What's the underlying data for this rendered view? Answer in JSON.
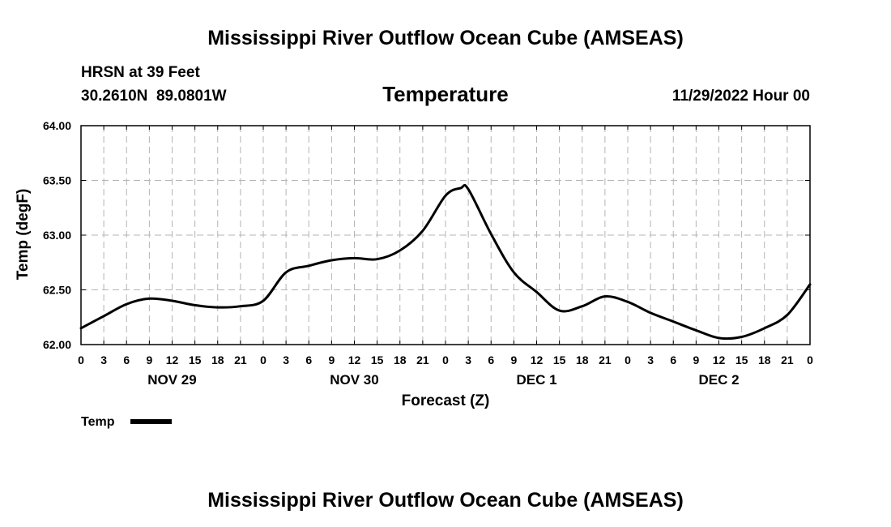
{
  "header": {
    "title": "Mississippi River Outflow Ocean Cube (AMSEAS)",
    "station": "HRSN at 39 Feet",
    "coords": "30.2610N  89.0801W",
    "chart_title": "Temperature",
    "datetime": "11/29/2022 Hour 00"
  },
  "footer": {
    "title": "Mississippi River Outflow Ocean Cube (AMSEAS)"
  },
  "chart_data": {
    "type": "line",
    "title": "Temperature",
    "xlabel": "Forecast (Z)",
    "ylabel": "Temp (degF)",
    "xlim": [
      0,
      96
    ],
    "ylim": [
      62.0,
      64.0
    ],
    "y_ticks": [
      "62.00",
      "62.50",
      "63.00",
      "63.50",
      "64.00"
    ],
    "y_tick_values": [
      62.0,
      62.5,
      63.0,
      63.5,
      64.0
    ],
    "x_tick_values": [
      0,
      3,
      6,
      9,
      12,
      15,
      18,
      21,
      24,
      27,
      30,
      33,
      36,
      39,
      42,
      45,
      48,
      51,
      54,
      57,
      60,
      63,
      66,
      69,
      72,
      75,
      78,
      81,
      84,
      87,
      90,
      93,
      96
    ],
    "x_tick_labels": [
      "0",
      "3",
      "6",
      "9",
      "12",
      "15",
      "18",
      "21",
      "0",
      "3",
      "6",
      "9",
      "12",
      "15",
      "18",
      "21",
      "0",
      "3",
      "6",
      "9",
      "12",
      "15",
      "18",
      "21",
      "0",
      "3",
      "6",
      "9",
      "12",
      "15",
      "18",
      "21",
      "0"
    ],
    "day_labels": [
      {
        "label": "NOV 29",
        "x": 12
      },
      {
        "label": "NOV 30",
        "x": 36
      },
      {
        "label": "DEC 1",
        "x": 60
      },
      {
        "label": "DEC 2",
        "x": 84
      }
    ],
    "grid": true,
    "legend": {
      "position": "bottom-left",
      "entries": [
        "Temp"
      ]
    },
    "series": [
      {
        "name": "Temp",
        "color": "#000000",
        "x": [
          0,
          3,
          6,
          9,
          12,
          15,
          18,
          21,
          24,
          27,
          30,
          33,
          36,
          39,
          42,
          45,
          48,
          50,
          51,
          54,
          57,
          60,
          63,
          66,
          69,
          72,
          75,
          78,
          81,
          84,
          87,
          90,
          93,
          96
        ],
        "values": [
          62.15,
          62.26,
          62.37,
          62.42,
          62.4,
          62.36,
          62.34,
          62.35,
          62.4,
          62.66,
          62.72,
          62.77,
          62.79,
          62.78,
          62.86,
          63.04,
          63.36,
          63.43,
          63.42,
          63.01,
          62.66,
          62.48,
          62.31,
          62.35,
          62.44,
          62.39,
          62.29,
          62.21,
          62.13,
          62.06,
          62.07,
          62.15,
          62.27,
          62.55
        ]
      }
    ]
  }
}
